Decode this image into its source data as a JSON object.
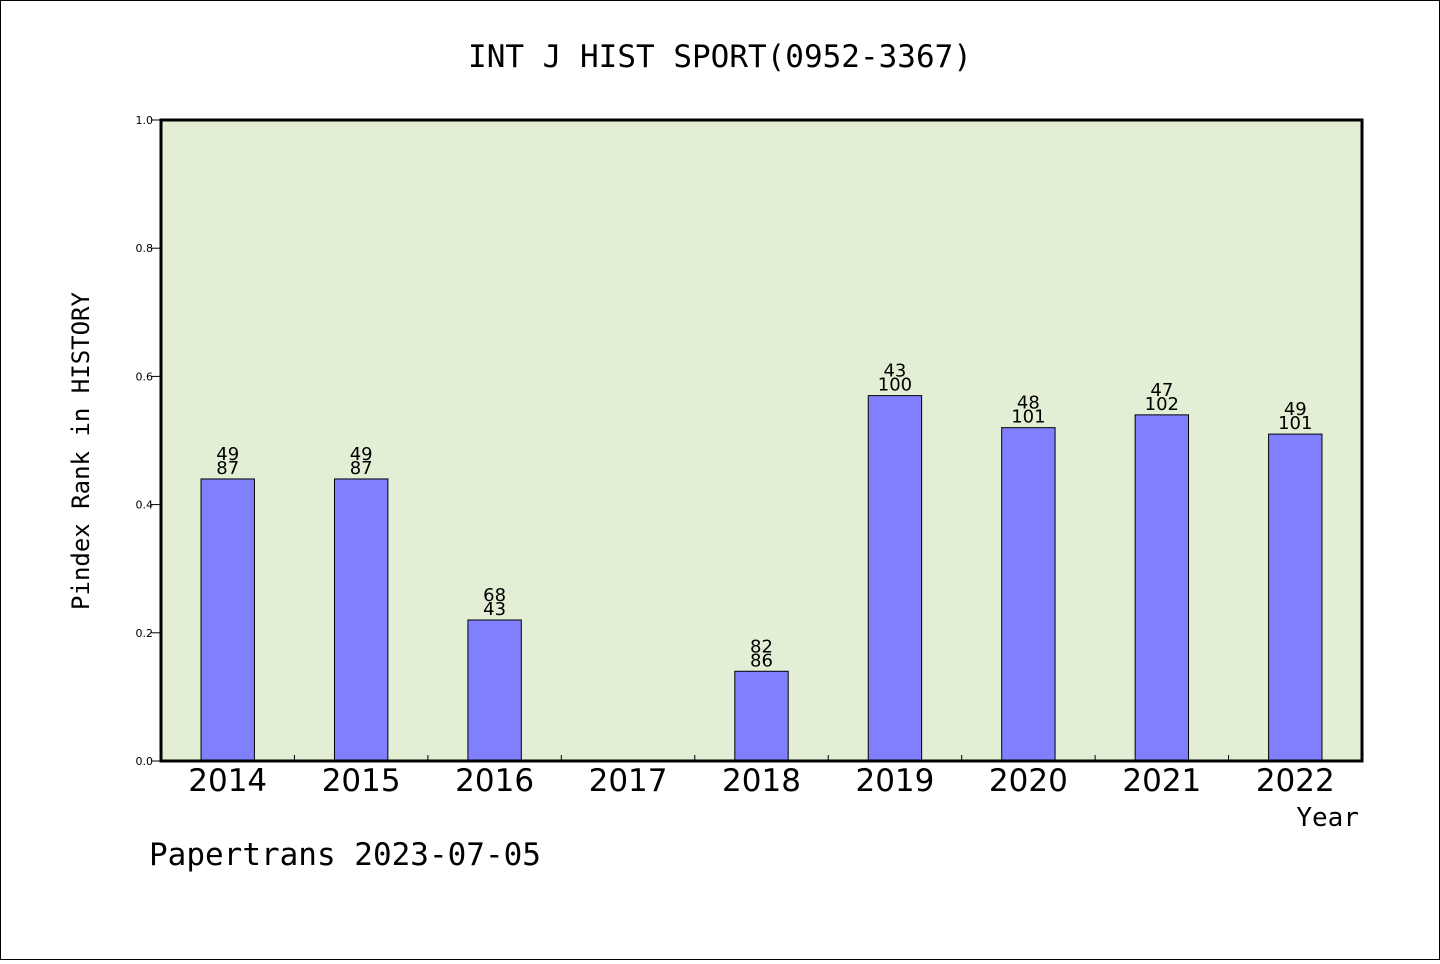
{
  "chart_data": {
    "type": "bar",
    "title": "INT J HIST SPORT(0952-3367)",
    "xlabel": "Year",
    "ylabel": "Pindex Rank in HISTORY",
    "ylim": [
      0,
      1.0
    ],
    "yticks": [
      "0.0",
      "0.2",
      "0.4",
      "0.6",
      "0.8",
      "1.0"
    ],
    "categories": [
      "2014",
      "2015",
      "2016",
      "2017",
      "2018",
      "2019",
      "2020",
      "2021",
      "2022"
    ],
    "values": [
      0.44,
      0.44,
      0.22,
      null,
      0.14,
      0.57,
      0.52,
      0.54,
      0.51
    ],
    "labels_top": [
      "49",
      "49",
      "68",
      "",
      "82",
      "43",
      "48",
      "47",
      "49"
    ],
    "labels_bottom": [
      "87",
      "87",
      "43",
      "",
      "86",
      "100",
      "101",
      "102",
      "101"
    ],
    "grid": false,
    "legend": "none",
    "bar_color": "#8080ff",
    "plot_background": "#e2efd5"
  },
  "footer": "Papertrans 2023-07-05"
}
